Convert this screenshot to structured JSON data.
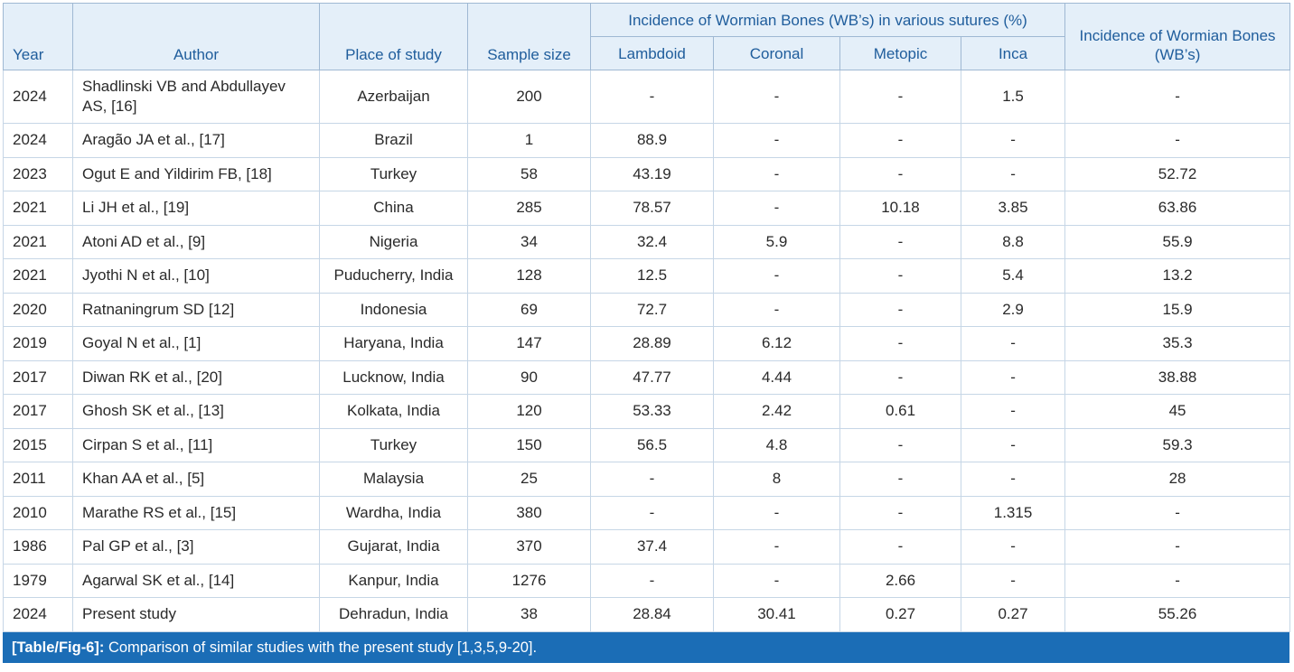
{
  "table": {
    "group_header": "Incidence of Wormian Bones (WB’s) in various sutures (%)",
    "headers": {
      "year": "Year",
      "author": "Author",
      "place": "Place of study",
      "sample": "Sample size",
      "lambdoid": "Lambdoid",
      "coronal": "Coronal",
      "metopic": "Metopic",
      "inca": "Inca",
      "total": "Incidence of Wormian Bones (WB’s)"
    },
    "rows": [
      {
        "year": "2024",
        "author": "Shadlinski VB and Abdullayev AS, [16]",
        "place": "Azerbaijan",
        "sample": "200",
        "lambdoid": "-",
        "coronal": "-",
        "metopic": "-",
        "inca": "1.5",
        "total": "-"
      },
      {
        "year": "2024",
        "author": "Aragão JA et al., [17]",
        "place": "Brazil",
        "sample": "1",
        "lambdoid": "88.9",
        "coronal": "-",
        "metopic": "-",
        "inca": "-",
        "total": "-"
      },
      {
        "year": "2023",
        "author": "Ogut E and Yildirim FB, [18]",
        "place": "Turkey",
        "sample": "58",
        "lambdoid": "43.19",
        "coronal": "-",
        "metopic": "-",
        "inca": "-",
        "total": "52.72"
      },
      {
        "year": "2021",
        "author": "Li JH et al., [19]",
        "place": "China",
        "sample": "285",
        "lambdoid": "78.57",
        "coronal": "-",
        "metopic": "10.18",
        "inca": "3.85",
        "total": "63.86"
      },
      {
        "year": "2021",
        "author": "Atoni AD et al., [9]",
        "place": "Nigeria",
        "sample": "34",
        "lambdoid": "32.4",
        "coronal": "5.9",
        "metopic": "-",
        "inca": "8.8",
        "total": "55.9"
      },
      {
        "year": "2021",
        "author": "Jyothi N et al., [10]",
        "place": "Puducherry, India",
        "sample": "128",
        "lambdoid": "12.5",
        "coronal": "-",
        "metopic": "-",
        "inca": "5.4",
        "total": "13.2"
      },
      {
        "year": "2020",
        "author": "Ratnaningrum SD [12]",
        "place": "Indonesia",
        "sample": "69",
        "lambdoid": "72.7",
        "coronal": "-",
        "metopic": "-",
        "inca": "2.9",
        "total": "15.9"
      },
      {
        "year": "2019",
        "author": "Goyal N et al., [1]",
        "place": "Haryana, India",
        "sample": "147",
        "lambdoid": "28.89",
        "coronal": "6.12",
        "metopic": "-",
        "inca": "-",
        "total": "35.3"
      },
      {
        "year": "2017",
        "author": "Diwan RK et al., [20]",
        "place": "Lucknow, India",
        "sample": "90",
        "lambdoid": "47.77",
        "coronal": "4.44",
        "metopic": "-",
        "inca": "-",
        "total": "38.88"
      },
      {
        "year": "2017",
        "author": "Ghosh SK et al., [13]",
        "place": "Kolkata, India",
        "sample": "120",
        "lambdoid": "53.33",
        "coronal": "2.42",
        "metopic": "0.61",
        "inca": "-",
        "total": "45"
      },
      {
        "year": "2015",
        "author": "Cirpan S et al., [11]",
        "place": "Turkey",
        "sample": "150",
        "lambdoid": "56.5",
        "coronal": "4.8",
        "metopic": "-",
        "inca": "-",
        "total": "59.3"
      },
      {
        "year": "2011",
        "author": "Khan AA et al., [5]",
        "place": "Malaysia",
        "sample": "25",
        "lambdoid": "-",
        "coronal": "8",
        "metopic": "-",
        "inca": "-",
        "total": "28"
      },
      {
        "year": "2010",
        "author": "Marathe RS et al., [15]",
        "place": "Wardha, India",
        "sample": "380",
        "lambdoid": "-",
        "coronal": "-",
        "metopic": "-",
        "inca": "1.315",
        "total": "-"
      },
      {
        "year": "1986",
        "author": "Pal GP et al., [3]",
        "place": "Gujarat, India",
        "sample": "370",
        "lambdoid": "37.4",
        "coronal": "-",
        "metopic": "-",
        "inca": "-",
        "total": "-"
      },
      {
        "year": "1979",
        "author": "Agarwal SK et al., [14]",
        "place": "Kanpur, India",
        "sample": "1276",
        "lambdoid": "-",
        "coronal": "-",
        "metopic": "2.66",
        "inca": "-",
        "total": "-"
      },
      {
        "year": "2024",
        "author": "Present study",
        "place": "Dehradun, India",
        "sample": "38",
        "lambdoid": "28.84",
        "coronal": "30.41",
        "metopic": "0.27",
        "inca": "0.27",
        "total": "55.26"
      }
    ]
  },
  "caption": {
    "label": "[Table/Fig-6]:",
    "text": " Comparison of similar studies with the present study [1,3,5,9-20]."
  },
  "colors": {
    "header_background": "#e4eff9",
    "header_text": "#1f5d9c",
    "caption_background": "#1b6db6",
    "caption_text": "#ffffff"
  }
}
